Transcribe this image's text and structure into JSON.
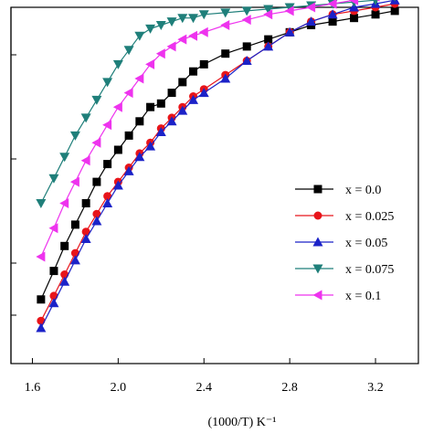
{
  "chart_data": {
    "type": "line",
    "xlabel": "(1000/T) K⁻¹",
    "ylabel": "",
    "xlim": [
      1.5,
      3.4
    ],
    "ylim": [
      0,
      1
    ],
    "x_ticks": [
      "1.6",
      "2.0",
      "2.4",
      "2.8",
      "3.2"
    ],
    "grid": false,
    "legend_position": "right",
    "series": [
      {
        "name": "x = 0.0",
        "color": "#000000",
        "marker": "square",
        "x": [
          1.64,
          1.7,
          1.75,
          1.8,
          1.85,
          1.9,
          1.95,
          2.0,
          2.05,
          2.1,
          2.15,
          2.2,
          2.25,
          2.3,
          2.35,
          2.4,
          2.5,
          2.6,
          2.7,
          2.8,
          2.9,
          3.0,
          3.1,
          3.2,
          3.29
        ],
        "y": [
          0.18,
          0.26,
          0.33,
          0.39,
          0.45,
          0.51,
          0.56,
          0.6,
          0.64,
          0.68,
          0.72,
          0.73,
          0.76,
          0.79,
          0.82,
          0.84,
          0.87,
          0.89,
          0.91,
          0.93,
          0.95,
          0.96,
          0.97,
          0.98,
          0.99
        ]
      },
      {
        "name": "x = 0.025",
        "color": "#e8141a",
        "marker": "circle",
        "x": [
          1.64,
          1.7,
          1.75,
          1.8,
          1.85,
          1.9,
          1.95,
          2.0,
          2.05,
          2.1,
          2.15,
          2.2,
          2.25,
          2.3,
          2.35,
          2.4,
          2.5,
          2.6,
          2.7,
          2.8,
          2.9,
          3.0,
          3.1,
          3.2,
          3.29
        ],
        "y": [
          0.12,
          0.19,
          0.25,
          0.31,
          0.37,
          0.42,
          0.47,
          0.51,
          0.55,
          0.59,
          0.62,
          0.66,
          0.69,
          0.72,
          0.75,
          0.77,
          0.81,
          0.85,
          0.89,
          0.93,
          0.96,
          0.98,
          0.99,
          1.0,
          1.01
        ]
      },
      {
        "name": "x = 0.05",
        "color": "#1b22c8",
        "marker": "triangle-up",
        "x": [
          1.64,
          1.7,
          1.75,
          1.8,
          1.85,
          1.9,
          1.95,
          2.0,
          2.05,
          2.1,
          2.15,
          2.2,
          2.25,
          2.3,
          2.35,
          2.4,
          2.5,
          2.6,
          2.7,
          2.8,
          2.9,
          3.0,
          3.1,
          3.2,
          3.29
        ],
        "y": [
          0.1,
          0.17,
          0.23,
          0.29,
          0.35,
          0.4,
          0.45,
          0.5,
          0.54,
          0.58,
          0.61,
          0.65,
          0.68,
          0.71,
          0.74,
          0.76,
          0.8,
          0.85,
          0.89,
          0.93,
          0.96,
          0.98,
          1.0,
          1.01,
          1.02
        ]
      },
      {
        "name": "x = 0.075",
        "color": "#1f7f7a",
        "marker": "triangle-down",
        "x": [
          1.64,
          1.7,
          1.75,
          1.8,
          1.85,
          1.9,
          1.95,
          2.0,
          2.05,
          2.1,
          2.15,
          2.2,
          2.25,
          2.3,
          2.35,
          2.4,
          2.5,
          2.6,
          2.7,
          2.8,
          2.9,
          3.0,
          3.1,
          3.2,
          3.29
        ],
        "y": [
          0.45,
          0.52,
          0.58,
          0.64,
          0.69,
          0.74,
          0.79,
          0.84,
          0.88,
          0.92,
          0.94,
          0.95,
          0.96,
          0.97,
          0.97,
          0.98,
          0.985,
          0.99,
          0.995,
          1.0,
          1.005,
          1.01,
          1.015,
          1.02,
          1.03
        ]
      },
      {
        "name": "x = 0.1",
        "color": "#ee33ee",
        "marker": "triangle-left",
        "x": [
          1.64,
          1.7,
          1.75,
          1.8,
          1.85,
          1.9,
          1.95,
          2.0,
          2.05,
          2.1,
          2.15,
          2.2,
          2.25,
          2.3,
          2.35,
          2.4,
          2.5,
          2.6,
          2.7,
          2.8,
          2.9,
          3.0,
          3.1,
          3.2,
          3.29
        ],
        "y": [
          0.3,
          0.38,
          0.45,
          0.51,
          0.57,
          0.62,
          0.67,
          0.72,
          0.76,
          0.8,
          0.84,
          0.87,
          0.89,
          0.91,
          0.92,
          0.93,
          0.95,
          0.965,
          0.98,
          0.99,
          1.0,
          1.01,
          1.02,
          1.03,
          1.04
        ]
      }
    ]
  }
}
